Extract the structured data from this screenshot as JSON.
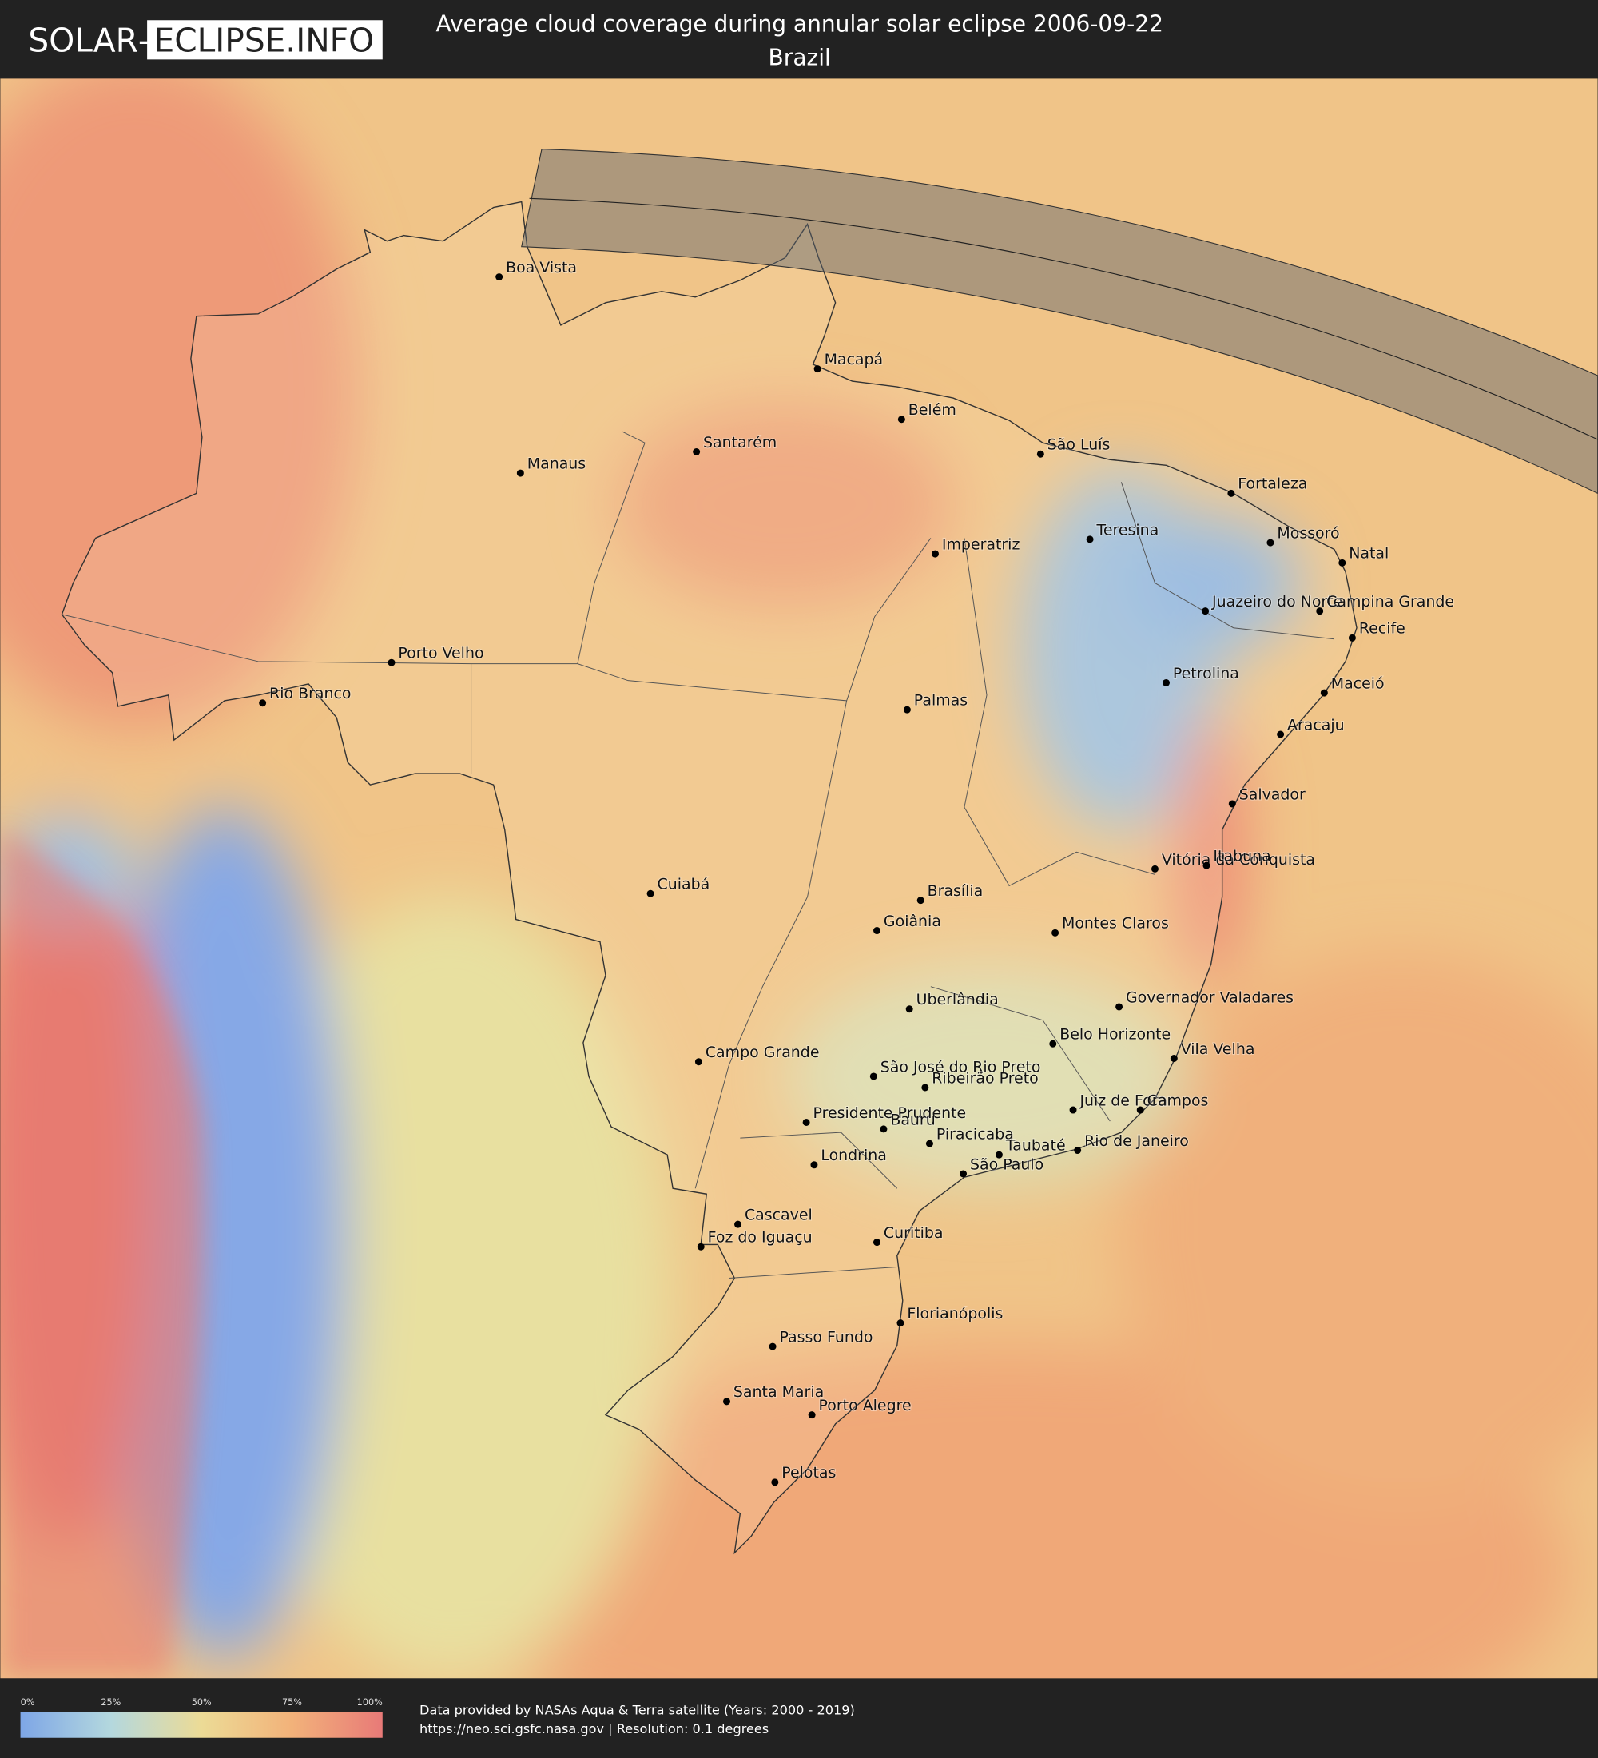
{
  "header": {
    "logo": {
      "prefix": "SOLAR",
      "separator": "-",
      "suffix": "ECLIPSE.INFO"
    },
    "title": "Average cloud coverage during annular solar eclipse 2006-09-22",
    "subtitle": "Brazil"
  },
  "cities": [
    "Boa Vista",
    "Macapá",
    "Belém",
    "Santarém",
    "Manaus",
    "São Luís",
    "Fortaleza",
    "Teresina",
    "Imperatriz",
    "Mossoró",
    "Natal",
    "Juazeiro do Norte",
    "Campina Grande",
    "Recife",
    "Petrolina",
    "Maceió",
    "Porto Velho",
    "Rio Branco",
    "Palmas",
    "Aracaju",
    "Salvador",
    "Vitória da Conquista",
    "Itabuna",
    "Cuiabá",
    "Brasília",
    "Goiânia",
    "Montes Claros",
    "Uberlândia",
    "Governador Valadares",
    "Belo Horizonte",
    "Vila Velha",
    "Campo Grande",
    "São José do Rio Preto",
    "Ribeirão Preto",
    "Juiz de Fora",
    "Campos",
    "Presidente Prudente",
    "Bauru",
    "Piracicaba",
    "Taubaté",
    "Rio de Janeiro",
    "Londrina",
    "São Paulo",
    "Cascavel",
    "Foz do Iguaçu",
    "Curitiba",
    "Florianópolis",
    "Passo Fundo",
    "Santa Maria",
    "Porto Alegre",
    "Pelotas"
  ],
  "legend": {
    "ticks": [
      "0%",
      "25%",
      "50%",
      "75%",
      "100%"
    ]
  },
  "footer": {
    "source": "Data provided by NASAs Aqua & Terra satellite (Years: 2000 - 2019)",
    "url": "https://neo.sci.gsfc.nasa.gov | Resolution: 0.1 degrees"
  }
}
